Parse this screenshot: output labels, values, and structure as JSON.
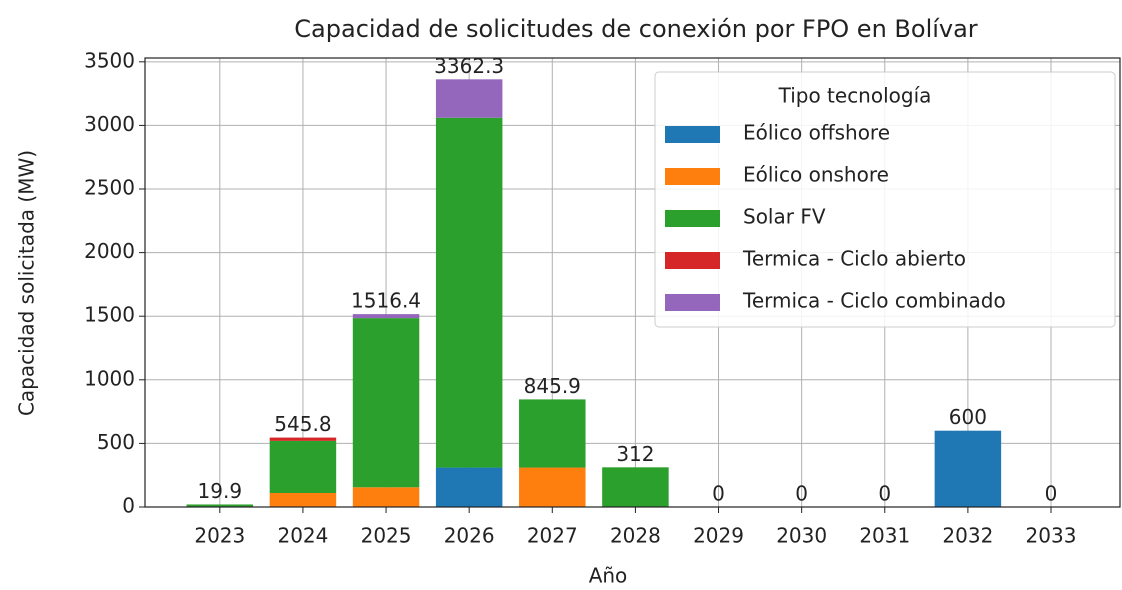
{
  "chart_data": {
    "type": "stacked_bar",
    "title": "Capacidad de solicitudes de conexión por FPO en Bolívar",
    "x_label": "Año",
    "y_label": "Capacidad solicitada (MW)",
    "legend_title": "Tipo tecnología",
    "legend_position": "upper right",
    "grid": true,
    "categories": [
      "2023",
      "2024",
      "2025",
      "2026",
      "2027",
      "2028",
      "2029",
      "2030",
      "2031",
      "2032",
      "2033"
    ],
    "series": [
      {
        "name": "Eólico offshore",
        "color": "#1f77b4",
        "values": [
          0,
          0,
          0,
          310,
          0,
          0,
          0,
          0,
          0,
          600,
          0
        ]
      },
      {
        "name": "Eólico onshore",
        "color": "#ff7f0e",
        "values": [
          0,
          110,
          155,
          0,
          310,
          0,
          0,
          0,
          0,
          0,
          0
        ]
      },
      {
        "name": "Solar FV",
        "color": "#2ca02c",
        "values": [
          19.9,
          410,
          1330,
          2750,
          535.9,
          312,
          0,
          0,
          0,
          0,
          0
        ]
      },
      {
        "name": "Termica - Ciclo abierto",
        "color": "#d62728",
        "values": [
          0,
          25.8,
          0,
          0,
          0,
          0,
          0,
          0,
          0,
          0,
          0
        ]
      },
      {
        "name": "Termica - Ciclo combinado",
        "color": "#9467bd",
        "values": [
          0,
          0,
          31.4,
          302.3,
          0,
          0,
          0,
          0,
          0,
          0,
          0
        ]
      }
    ],
    "totals": [
      19.9,
      545.8,
      1516.4,
      3362.3,
      845.9,
      312,
      0,
      0,
      0,
      600,
      0
    ],
    "ylim": [
      0,
      3530
    ],
    "yticks": [
      0,
      500,
      1000,
      1500,
      2000,
      2500,
      3000,
      3500
    ]
  }
}
